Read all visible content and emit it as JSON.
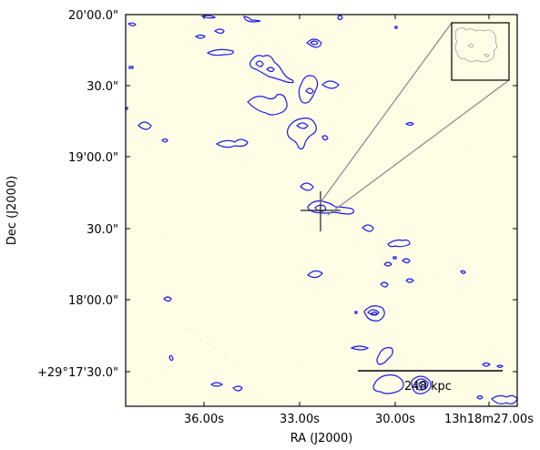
{
  "chart_data": {
    "type": "contour",
    "xlabel": "RA (J2000)",
    "ylabel": "Dec (J2000)",
    "x_ticks": [
      "36.00s",
      "33.00s",
      "30.00s",
      "13h18m27.00s"
    ],
    "y_ticks": [
      "20'00.0\"",
      "30.0\"",
      "19'00.0\"",
      "30.0\"",
      "18'00.0\"",
      "+29°17'30.0\""
    ],
    "scale_bar_label": "248 kpc",
    "background_color": "#fffde6",
    "contour_color": "#1a1aee",
    "grid": false,
    "has_inset": true,
    "has_crosshair": true
  }
}
